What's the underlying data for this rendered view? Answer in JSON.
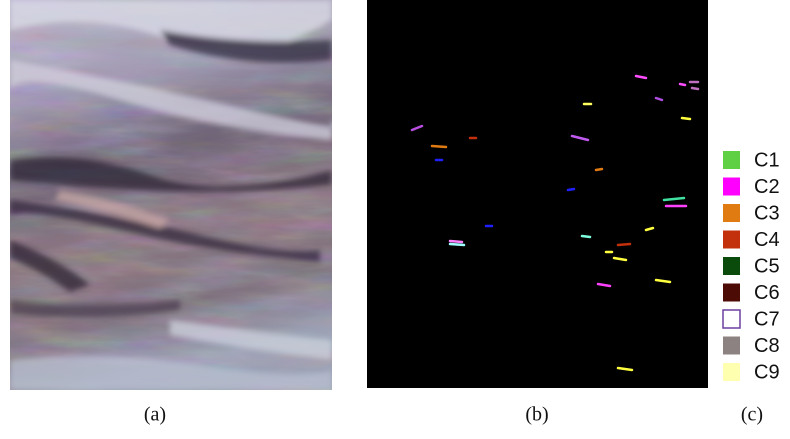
{
  "figure": {
    "captions": [
      "(a)",
      "(b)",
      "(c)"
    ],
    "legend": [
      {
        "label": "C1",
        "color": "#5fd043"
      },
      {
        "label": "C2",
        "color": "#ff00ff"
      },
      {
        "label": "C3",
        "color": "#e07b12"
      },
      {
        "label": "C4",
        "color": "#c2300c"
      },
      {
        "label": "C5",
        "color": "#0a4a0a"
      },
      {
        "label": "C6",
        "color": "#4d0b05"
      },
      {
        "label": "C7",
        "color": "#6b3fa0",
        "fill": false
      },
      {
        "label": "C8",
        "color": "#8c8282"
      },
      {
        "label": "C9",
        "color": "#ffffb0"
      }
    ]
  }
}
